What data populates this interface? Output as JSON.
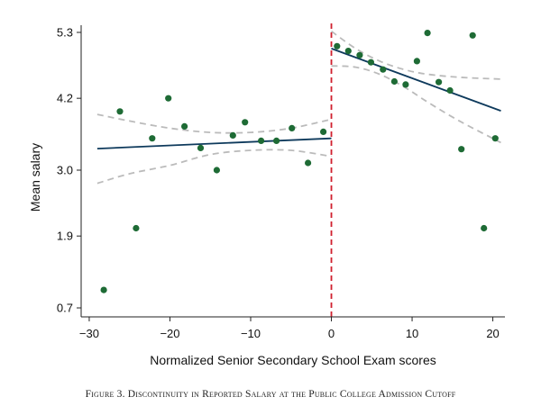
{
  "caption": "Figure 3. Discontinuity in Reported Salary at the Public College Admission Cutoff",
  "chart_data": {
    "type": "scatter",
    "title": "",
    "xlabel": "Normalized Senior Secondary School Exam scores",
    "ylabel": "Mean salary",
    "xlim": [
      -31,
      21.5
    ],
    "ylim": [
      0.55,
      5.42
    ],
    "xticks": [
      -30,
      -20,
      -10,
      0,
      10,
      20
    ],
    "xtick_labels": [
      "−30",
      "−20",
      "−10",
      "0",
      "10",
      "20"
    ],
    "yticks": [
      0.7,
      1.9,
      3.0,
      4.2,
      5.3
    ],
    "ytick_labels": [
      "0.7",
      "1.9",
      "3.0",
      "4.2",
      "5.3"
    ],
    "cutoff_x": 0,
    "colors": {
      "points": "#1e6b35",
      "fit": "#0e3a5c",
      "ci": "#bbbbbb",
      "cutoff": "#d0202e"
    },
    "points": [
      {
        "x": -28.2,
        "y": 1.0
      },
      {
        "x": -26.2,
        "y": 3.98
      },
      {
        "x": -24.2,
        "y": 2.03
      },
      {
        "x": -22.2,
        "y": 3.53
      },
      {
        "x": -20.2,
        "y": 4.2
      },
      {
        "x": -18.2,
        "y": 3.73
      },
      {
        "x": -16.2,
        "y": 3.37
      },
      {
        "x": -14.2,
        "y": 3.0
      },
      {
        "x": -12.2,
        "y": 3.58
      },
      {
        "x": -10.7,
        "y": 3.8
      },
      {
        "x": -8.7,
        "y": 3.49
      },
      {
        "x": -6.8,
        "y": 3.49
      },
      {
        "x": -4.9,
        "y": 3.7
      },
      {
        "x": -2.9,
        "y": 3.12
      },
      {
        "x": -1.0,
        "y": 3.64
      },
      {
        "x": 0.7,
        "y": 5.07
      },
      {
        "x": 2.1,
        "y": 4.99
      },
      {
        "x": 3.5,
        "y": 4.92
      },
      {
        "x": 4.9,
        "y": 4.8
      },
      {
        "x": 6.4,
        "y": 4.68
      },
      {
        "x": 7.8,
        "y": 4.48
      },
      {
        "x": 9.2,
        "y": 4.43
      },
      {
        "x": 10.6,
        "y": 4.82
      },
      {
        "x": 11.9,
        "y": 5.29
      },
      {
        "x": 13.3,
        "y": 4.47
      },
      {
        "x": 14.7,
        "y": 4.33
      },
      {
        "x": 16.1,
        "y": 3.35
      },
      {
        "x": 17.5,
        "y": 5.25
      },
      {
        "x": 18.9,
        "y": 2.03
      },
      {
        "x": 20.3,
        "y": 3.53
      }
    ],
    "fit_left": [
      {
        "x": -29,
        "y": 3.36
      },
      {
        "x": 0,
        "y": 3.53
      }
    ],
    "fit_right": [
      {
        "x": 0,
        "y": 5.03
      },
      {
        "x": 21,
        "y": 3.99
      }
    ],
    "ci_left_upper": [
      {
        "x": -29,
        "y": 3.93
      },
      {
        "x": -25,
        "y": 3.82
      },
      {
        "x": -20,
        "y": 3.7
      },
      {
        "x": -15,
        "y": 3.63
      },
      {
        "x": -10,
        "y": 3.63
      },
      {
        "x": -5,
        "y": 3.7
      },
      {
        "x": 0,
        "y": 3.85
      }
    ],
    "ci_left_lower": [
      {
        "x": -29,
        "y": 2.78
      },
      {
        "x": -25,
        "y": 2.94
      },
      {
        "x": -20,
        "y": 3.08
      },
      {
        "x": -15,
        "y": 3.26
      },
      {
        "x": -10,
        "y": 3.33
      },
      {
        "x": -5,
        "y": 3.33
      },
      {
        "x": 0,
        "y": 3.23
      }
    ],
    "ci_right_upper": [
      {
        "x": 0,
        "y": 5.32
      },
      {
        "x": 3,
        "y": 5.03
      },
      {
        "x": 6,
        "y": 4.82
      },
      {
        "x": 9,
        "y": 4.68
      },
      {
        "x": 12,
        "y": 4.6
      },
      {
        "x": 16,
        "y": 4.55
      },
      {
        "x": 21,
        "y": 4.52
      }
    ],
    "ci_right_lower": [
      {
        "x": 0,
        "y": 4.74
      },
      {
        "x": 3,
        "y": 4.72
      },
      {
        "x": 6,
        "y": 4.6
      },
      {
        "x": 9,
        "y": 4.39
      },
      {
        "x": 12,
        "y": 4.13
      },
      {
        "x": 16,
        "y": 3.81
      },
      {
        "x": 21,
        "y": 3.46
      }
    ],
    "grid": false,
    "legend": "none"
  }
}
